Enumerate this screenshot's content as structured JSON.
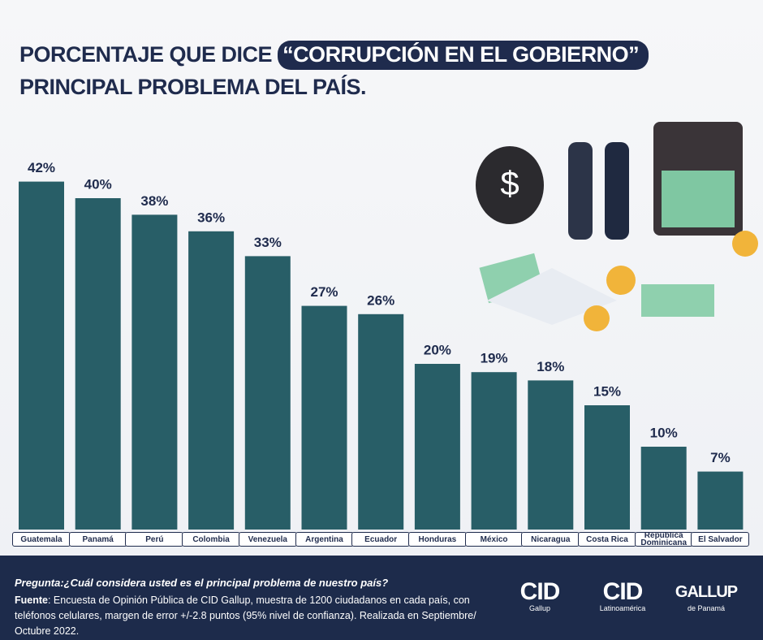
{
  "chart_data": {
    "type": "bar",
    "title": "PORCENTAJE QUE DICE",
    "title_highlight": "“CORRUPCIÓN EN EL GOBIERNO”",
    "title_line2": "PRINCIPAL PROBLEMA DEL PAÍS.",
    "categories": [
      "Guatemala",
      "Panamá",
      "Perú",
      "Colombia",
      "Venezuela",
      "Argentina",
      "Ecuador",
      "Honduras",
      "México",
      "Nicaragua",
      "Costa Rica",
      "República Dominicana",
      "El Salvador"
    ],
    "values": [
      42,
      40,
      38,
      36,
      33,
      27,
      26,
      20,
      19,
      18,
      15,
      10,
      7
    ],
    "value_labels": [
      "42%",
      "40%",
      "38%",
      "36%",
      "33%",
      "27%",
      "26%",
      "20%",
      "19%",
      "18%",
      "15%",
      "10%",
      "7%"
    ],
    "color": "#285e67"
  },
  "footer": {
    "question": "Pregunta:¿Cuál considera usted es el principal problema de nuestro país?",
    "source_label": "Fuente",
    "source_text": ": Encuesta de Opinión Pública de CID Gallup, muestra de 1200 ciudadanos en cada país, con teléfonos celulares, margen de error +/-2.8 puntos (95% nivel de confianza).  Realizada en Septiembre/ Octubre 2022.",
    "logos": [
      {
        "name": "CID",
        "sub": "Gallup"
      },
      {
        "name": "CID",
        "sub": "Latinoamérica"
      },
      {
        "name": "GALLUP",
        "sub": "de Panamá"
      }
    ]
  }
}
